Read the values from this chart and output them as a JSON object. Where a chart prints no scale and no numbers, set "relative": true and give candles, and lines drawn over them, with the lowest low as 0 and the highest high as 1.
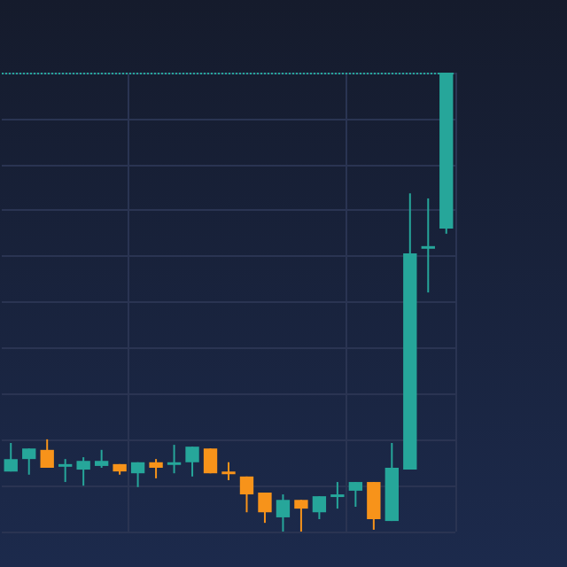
{
  "chart_data": {
    "type": "candlestick",
    "relative": true,
    "grid": true,
    "categories": [
      null,
      null,
      null,
      null,
      null,
      null,
      null,
      null,
      null,
      null,
      null,
      null,
      null,
      null,
      null,
      null,
      null,
      null,
      null,
      null,
      null,
      null,
      null,
      null,
      null
    ],
    "ohlc": [
      [
        0.131,
        0.193,
        0.131,
        0.158
      ],
      [
        0.158,
        0.181,
        0.124,
        0.181
      ],
      [
        0.178,
        0.201,
        0.139,
        0.139
      ],
      [
        0.143,
        0.158,
        0.108,
        0.147
      ],
      [
        0.135,
        0.162,
        0.1,
        0.154
      ],
      [
        0.143,
        0.178,
        0.139,
        0.154
      ],
      [
        0.147,
        0.147,
        0.124,
        0.131
      ],
      [
        0.127,
        0.151,
        0.097,
        0.151
      ],
      [
        0.151,
        0.158,
        0.116,
        0.139
      ],
      [
        0.147,
        0.189,
        0.127,
        0.151
      ],
      [
        0.151,
        0.185,
        0.12,
        0.185
      ],
      [
        0.181,
        0.181,
        0.127,
        0.127
      ],
      [
        0.131,
        0.151,
        0.112,
        0.127
      ],
      [
        0.12,
        0.12,
        0.042,
        0.081
      ],
      [
        0.085,
        0.085,
        0.019,
        0.042
      ],
      [
        0.031,
        0.081,
        0,
        0.069
      ],
      [
        0.069,
        0.069,
        0,
        0.05
      ],
      [
        0.042,
        0.077,
        0.027,
        0.077
      ],
      [
        0.077,
        0.108,
        0.05,
        0.081
      ],
      [
        0.089,
        0.108,
        0.054,
        0.108
      ],
      [
        0.108,
        0.108,
        0.004,
        0.027
      ],
      [
        0.023,
        0.193,
        0.023,
        0.139
      ],
      [
        0.135,
        0.737,
        0.135,
        0.606
      ],
      [
        0.618,
        0.726,
        0.521,
        0.622
      ],
      [
        0.66,
        1,
        0.649,
        1
      ]
    ],
    "colors": [
      "#26a69a",
      "#26a69a",
      "#f7931a",
      "#26a69a",
      "#26a69a",
      "#26a69a",
      "#f7931a",
      "#26a69a",
      "#f7931a",
      "#26a69a",
      "#26a69a",
      "#f7931a",
      "#f7931a",
      "#f7931a",
      "#f7931a",
      "#26a69a",
      "#f7931a",
      "#26a69a",
      "#26a69a",
      "#26a69a",
      "#f7931a",
      "#26a69a",
      "#26a69a",
      "#26a69a",
      "#26a69a"
    ],
    "ref_lines": [
      {
        "axis": "y",
        "value": 1,
        "color": "#26a69a",
        "line_style": "dotted"
      }
    ]
  }
}
